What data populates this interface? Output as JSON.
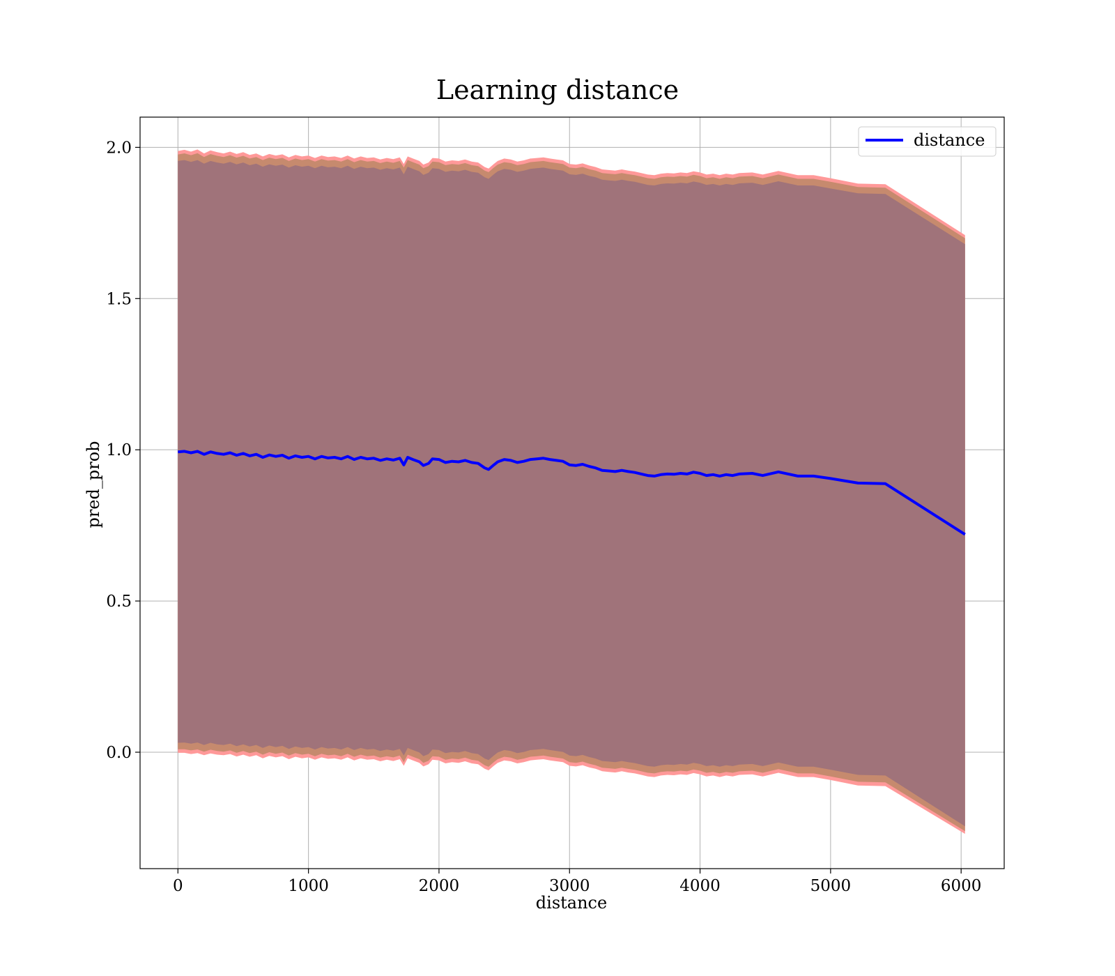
{
  "chart_data": {
    "type": "line",
    "title": "Learning distance",
    "xlabel": "distance",
    "ylabel": "pred_prob",
    "xlim": [
      -290,
      6330
    ],
    "ylim": [
      -0.385,
      2.1
    ],
    "xticks": [
      0,
      1000,
      2000,
      3000,
      4000,
      5000,
      6000
    ],
    "yticks": [
      0.0,
      0.5,
      1.0,
      1.5,
      2.0
    ],
    "grid": true,
    "legend": {
      "position": "top-right",
      "entries": [
        "distance"
      ]
    },
    "colors": {
      "line": "#0000ff",
      "band_outer": "#ff9999",
      "band_mid": "#c68a6e",
      "band_inner": "#a0737a",
      "grid": "#b0b0b0"
    },
    "series": [
      {
        "name": "distance",
        "x": [
          0,
          50,
          100,
          150,
          200,
          250,
          300,
          350,
          400,
          450,
          500,
          550,
          600,
          650,
          700,
          750,
          800,
          850,
          900,
          950,
          1000,
          1050,
          1100,
          1150,
          1200,
          1250,
          1300,
          1350,
          1400,
          1450,
          1500,
          1550,
          1600,
          1650,
          1700,
          1730,
          1760,
          1800,
          1850,
          1880,
          1920,
          1950,
          2000,
          2050,
          2100,
          2150,
          2200,
          2250,
          2300,
          2350,
          2380,
          2420,
          2450,
          2500,
          2550,
          2600,
          2650,
          2700,
          2750,
          2800,
          2850,
          2900,
          2950,
          3000,
          3050,
          3100,
          3150,
          3200,
          3250,
          3300,
          3350,
          3400,
          3450,
          3500,
          3550,
          3600,
          3650,
          3700,
          3750,
          3800,
          3850,
          3900,
          3950,
          4000,
          4050,
          4100,
          4150,
          4200,
          4250,
          4300,
          4400,
          4480,
          4600,
          4750,
          4870,
          5000,
          5210,
          5420,
          6030
        ],
        "values": [
          0.993,
          0.995,
          0.99,
          0.995,
          0.985,
          0.993,
          0.988,
          0.985,
          0.99,
          0.982,
          0.988,
          0.98,
          0.985,
          0.975,
          0.983,
          0.978,
          0.982,
          0.972,
          0.98,
          0.975,
          0.978,
          0.97,
          0.978,
          0.973,
          0.975,
          0.97,
          0.978,
          0.968,
          0.975,
          0.97,
          0.972,
          0.965,
          0.97,
          0.966,
          0.972,
          0.95,
          0.975,
          0.968,
          0.96,
          0.948,
          0.955,
          0.97,
          0.968,
          0.958,
          0.962,
          0.96,
          0.965,
          0.958,
          0.955,
          0.94,
          0.935,
          0.95,
          0.96,
          0.968,
          0.965,
          0.958,
          0.962,
          0.968,
          0.97,
          0.972,
          0.968,
          0.965,
          0.962,
          0.95,
          0.948,
          0.952,
          0.945,
          0.94,
          0.932,
          0.93,
          0.928,
          0.932,
          0.928,
          0.925,
          0.92,
          0.915,
          0.913,
          0.918,
          0.92,
          0.919,
          0.922,
          0.92,
          0.926,
          0.922,
          0.915,
          0.918,
          0.913,
          0.918,
          0.915,
          0.92,
          0.922,
          0.915,
          0.927,
          0.913,
          0.913,
          0.905,
          0.89,
          0.888,
          0.72
        ]
      }
    ],
    "bands": {
      "x": [
        0,
        50,
        100,
        150,
        200,
        250,
        300,
        350,
        400,
        450,
        500,
        550,
        600,
        650,
        700,
        750,
        800,
        850,
        900,
        950,
        1000,
        1050,
        1100,
        1150,
        1200,
        1250,
        1300,
        1350,
        1400,
        1450,
        1500,
        1550,
        1600,
        1650,
        1700,
        1730,
        1760,
        1800,
        1850,
        1880,
        1920,
        1950,
        2000,
        2050,
        2100,
        2150,
        2200,
        2250,
        2300,
        2350,
        2380,
        2420,
        2450,
        2500,
        2550,
        2600,
        2650,
        2700,
        2750,
        2800,
        2850,
        2900,
        2950,
        3000,
        3050,
        3100,
        3150,
        3200,
        3250,
        3300,
        3350,
        3400,
        3450,
        3500,
        3550,
        3600,
        3650,
        3700,
        3750,
        3800,
        3850,
        3900,
        3950,
        4000,
        4050,
        4100,
        4150,
        4200,
        4250,
        4300,
        4400,
        4480,
        4600,
        4750,
        4870,
        5000,
        5210,
        5420,
        6030
      ],
      "outer_upper": [
        1.988,
        1.992,
        1.986,
        1.993,
        1.98,
        1.99,
        1.984,
        1.98,
        1.986,
        1.978,
        1.984,
        1.975,
        1.98,
        1.97,
        1.978,
        1.973,
        1.977,
        1.967,
        1.975,
        1.97,
        1.973,
        1.965,
        1.973,
        1.968,
        1.97,
        1.965,
        1.973,
        1.963,
        1.97,
        1.965,
        1.967,
        1.96,
        1.965,
        1.961,
        1.967,
        1.945,
        1.97,
        1.963,
        1.955,
        1.943,
        1.95,
        1.965,
        1.963,
        1.953,
        1.957,
        1.955,
        1.96,
        1.953,
        1.95,
        1.935,
        1.93,
        1.945,
        1.955,
        1.963,
        1.96,
        1.953,
        1.957,
        1.963,
        1.965,
        1.967,
        1.963,
        1.96,
        1.957,
        1.945,
        1.943,
        1.947,
        1.94,
        1.935,
        1.927,
        1.925,
        1.923,
        1.927,
        1.923,
        1.92,
        1.915,
        1.91,
        1.908,
        1.913,
        1.915,
        1.914,
        1.917,
        1.915,
        1.921,
        1.917,
        1.91,
        1.913,
        1.908,
        1.913,
        1.91,
        1.915,
        1.917,
        1.91,
        1.922,
        1.908,
        1.908,
        1.898,
        1.88,
        1.878,
        1.71
      ],
      "inner_upper": [
        1.955,
        1.958,
        1.952,
        1.958,
        1.946,
        1.955,
        1.95,
        1.946,
        1.952,
        1.944,
        1.95,
        1.941,
        1.946,
        1.936,
        1.944,
        1.939,
        1.943,
        1.933,
        1.941,
        1.936,
        1.939,
        1.931,
        1.939,
        1.934,
        1.936,
        1.931,
        1.939,
        1.929,
        1.936,
        1.931,
        1.933,
        1.926,
        1.931,
        1.927,
        1.933,
        1.911,
        1.936,
        1.929,
        1.921,
        1.909,
        1.916,
        1.931,
        1.929,
        1.919,
        1.923,
        1.921,
        1.926,
        1.919,
        1.916,
        1.901,
        1.896,
        1.911,
        1.921,
        1.929,
        1.926,
        1.919,
        1.923,
        1.929,
        1.931,
        1.933,
        1.929,
        1.926,
        1.923,
        1.911,
        1.909,
        1.913,
        1.906,
        1.901,
        1.893,
        1.891,
        1.889,
        1.893,
        1.889,
        1.886,
        1.881,
        1.876,
        1.874,
        1.879,
        1.881,
        1.88,
        1.883,
        1.881,
        1.887,
        1.883,
        1.876,
        1.879,
        1.874,
        1.879,
        1.876,
        1.881,
        1.883,
        1.876,
        1.888,
        1.874,
        1.874,
        1.864,
        1.848,
        1.846,
        1.68
      ],
      "inner_lower": [
        0.031,
        0.032,
        0.028,
        0.032,
        0.024,
        0.031,
        0.026,
        0.024,
        0.028,
        0.02,
        0.026,
        0.019,
        0.024,
        0.014,
        0.022,
        0.017,
        0.021,
        0.011,
        0.019,
        0.014,
        0.017,
        0.009,
        0.017,
        0.012,
        0.014,
        0.009,
        0.017,
        0.007,
        0.014,
        0.009,
        0.011,
        0.004,
        0.009,
        0.005,
        0.011,
        -0.011,
        0.014,
        0.007,
        -0.001,
        -0.013,
        -0.006,
        0.009,
        0.007,
        -0.003,
        0.001,
        -0.001,
        0.004,
        -0.003,
        -0.006,
        -0.021,
        -0.026,
        -0.011,
        -0.001,
        0.007,
        0.004,
        -0.003,
        0.001,
        0.007,
        0.009,
        0.011,
        0.007,
        0.004,
        0.001,
        -0.011,
        -0.013,
        -0.009,
        -0.016,
        -0.021,
        -0.029,
        -0.031,
        -0.033,
        -0.029,
        -0.033,
        -0.036,
        -0.041,
        -0.046,
        -0.048,
        -0.043,
        -0.041,
        -0.042,
        -0.039,
        -0.041,
        -0.035,
        -0.039,
        -0.046,
        -0.043,
        -0.048,
        -0.043,
        -0.046,
        -0.041,
        -0.039,
        -0.046,
        -0.034,
        -0.048,
        -0.048,
        -0.058,
        -0.075,
        -0.077,
        -0.245
      ],
      "outer_lower": [
        -0.002,
        -0.002,
        -0.006,
        -0.003,
        -0.01,
        -0.004,
        -0.008,
        -0.01,
        -0.006,
        -0.014,
        -0.008,
        -0.015,
        -0.01,
        -0.02,
        -0.012,
        -0.017,
        -0.013,
        -0.023,
        -0.015,
        -0.02,
        -0.017,
        -0.025,
        -0.017,
        -0.022,
        -0.02,
        -0.025,
        -0.017,
        -0.027,
        -0.02,
        -0.025,
        -0.023,
        -0.03,
        -0.025,
        -0.029,
        -0.023,
        -0.045,
        -0.02,
        -0.027,
        -0.035,
        -0.047,
        -0.04,
        -0.025,
        -0.027,
        -0.037,
        -0.033,
        -0.035,
        -0.03,
        -0.037,
        -0.04,
        -0.055,
        -0.06,
        -0.045,
        -0.035,
        -0.027,
        -0.03,
        -0.037,
        -0.033,
        -0.027,
        -0.025,
        -0.023,
        -0.027,
        -0.03,
        -0.033,
        -0.045,
        -0.047,
        -0.043,
        -0.05,
        -0.055,
        -0.063,
        -0.065,
        -0.067,
        -0.063,
        -0.067,
        -0.07,
        -0.075,
        -0.08,
        -0.082,
        -0.077,
        -0.075,
        -0.076,
        -0.073,
        -0.075,
        -0.069,
        -0.073,
        -0.08,
        -0.077,
        -0.082,
        -0.077,
        -0.08,
        -0.075,
        -0.073,
        -0.08,
        -0.068,
        -0.082,
        -0.082,
        -0.092,
        -0.11,
        -0.112,
        -0.27
      ]
    }
  }
}
